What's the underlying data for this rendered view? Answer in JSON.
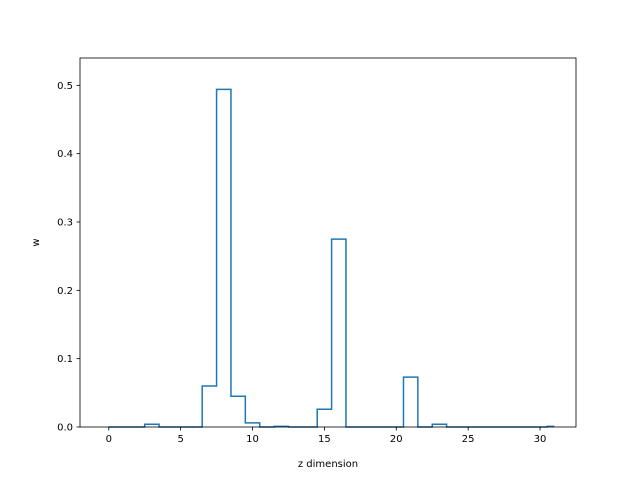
{
  "chart_data": {
    "type": "line",
    "style": "step-mid",
    "title": "",
    "xlabel": "z dimension",
    "ylabel": "w",
    "xlim": [
      -2,
      32.5
    ],
    "ylim": [
      0,
      0.54
    ],
    "x_ticks": [
      0,
      5,
      10,
      15,
      20,
      25,
      30
    ],
    "x_tick_labels": [
      "0",
      "5",
      "10",
      "15",
      "20",
      "25",
      "30"
    ],
    "y_ticks": [
      0.0,
      0.1,
      0.2,
      0.3,
      0.4,
      0.5
    ],
    "y_tick_labels": [
      "0.0",
      "0.1",
      "0.2",
      "0.3",
      "0.4",
      "0.5"
    ],
    "grid": false,
    "legend": "none",
    "series": [
      {
        "color": "#1f77b4",
        "x": [
          0,
          1,
          2,
          3,
          4,
          5,
          6,
          7,
          8,
          9,
          10,
          11,
          12,
          13,
          14,
          15,
          16,
          17,
          18,
          19,
          20,
          21,
          22,
          23,
          24,
          25,
          26,
          27,
          28,
          29,
          30,
          31
        ],
        "y": [
          0,
          0,
          0,
          0.004,
          0,
          0,
          0,
          0.06,
          0.494,
          0.045,
          0.006,
          0,
          0.001,
          0,
          0,
          0.026,
          0.275,
          0,
          0,
          0,
          0,
          0.073,
          0,
          0.004,
          0,
          0,
          0,
          0,
          0,
          0,
          0,
          0.001
        ]
      }
    ]
  }
}
